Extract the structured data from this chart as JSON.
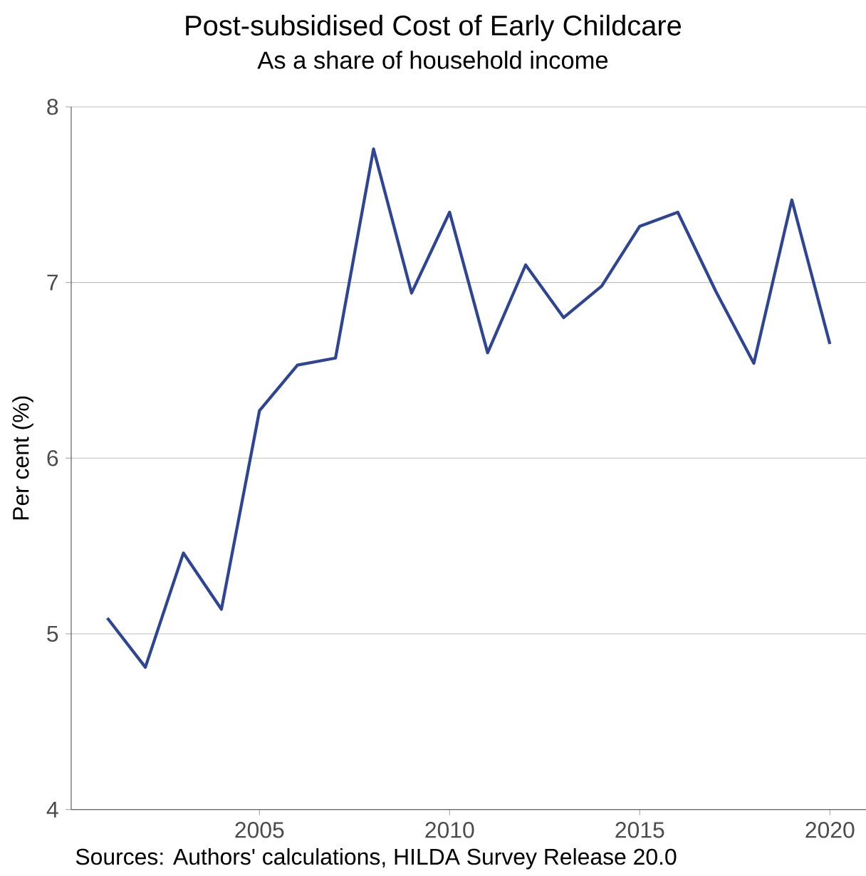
{
  "chart_data": {
    "type": "line",
    "title": "Post-subsidised Cost of Early Childcare",
    "subtitle": "As a share of household income",
    "ylabel": "Per cent (%)",
    "x": [
      2001,
      2002,
      2003,
      2004,
      2005,
      2006,
      2007,
      2008,
      2009,
      2010,
      2011,
      2012,
      2013,
      2014,
      2015,
      2016,
      2017,
      2018,
      2019,
      2020
    ],
    "series": [
      {
        "color": "#2e4593",
        "values": [
          5.09,
          4.81,
          5.46,
          5.14,
          6.27,
          6.53,
          6.57,
          7.76,
          6.94,
          7.4,
          6.6,
          7.1,
          6.8,
          6.98,
          7.32,
          7.4,
          6.95,
          6.54,
          7.47,
          6.65
        ]
      }
    ],
    "xlim": [
      2000.05,
      2020.95
    ],
    "ylim": [
      4,
      8
    ],
    "xticks": [
      2005,
      2010,
      2015,
      2020
    ],
    "yticks": [
      4,
      5,
      6,
      7,
      8
    ],
    "grid": "y",
    "marker": "none",
    "line_style": "solid",
    "annotations": [
      "Sources: Authors' calculations, HILDA Survey Release 20.0"
    ]
  }
}
